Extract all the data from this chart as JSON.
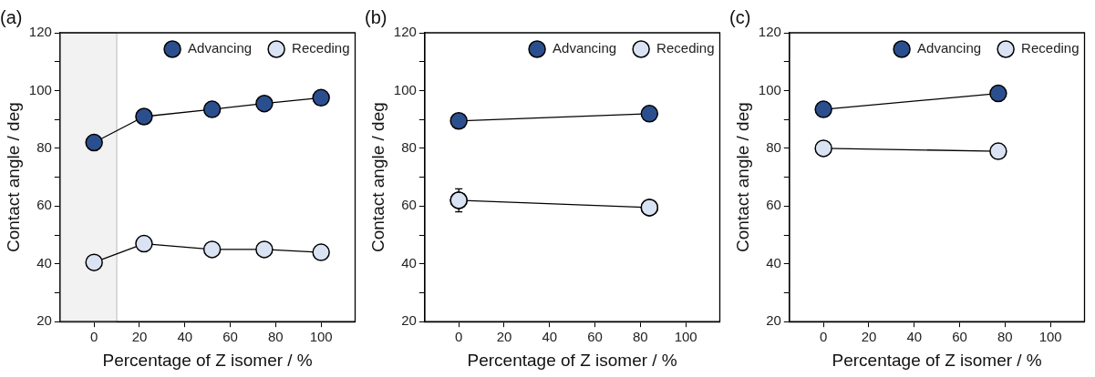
{
  "chart_data": [
    {
      "type": "line",
      "title": "(a)",
      "xlabel": "Percentage of Z isomer / %",
      "ylabel": "Contact angle / deg",
      "xlim": [
        -15,
        115
      ],
      "ylim": [
        20,
        120
      ],
      "xticks": [
        0,
        20,
        40,
        60,
        80,
        100
      ],
      "yticks": [
        20,
        {
          "value": 30,
          "label": null
        },
        40,
        {
          "value": 50,
          "label": null
        },
        60,
        {
          "value": 70,
          "label": null
        },
        80,
        {
          "value": 90,
          "label": null
        },
        100,
        {
          "value": 110,
          "label": null
        },
        120
      ],
      "grid": false,
      "legend": "top right",
      "marker": "circle",
      "line_style": "solid",
      "x": [
        0,
        22,
        52,
        75,
        100
      ],
      "bands": [
        {
          "axis": "x",
          "from": -15,
          "to": 10,
          "color": "#f2f2f2"
        }
      ],
      "series": [
        {
          "name": "Advancing",
          "color": "#2b4f8e",
          "values": [
            82,
            91,
            93.5,
            95.5,
            97.5
          ]
        },
        {
          "name": "Receding",
          "color": "#dae3f3",
          "values": [
            40.5,
            47,
            45,
            45,
            44
          ]
        }
      ]
    },
    {
      "type": "line",
      "title": "(b)",
      "xlabel": "Percentage of Z isomer / %",
      "ylabel": "Contact angle / deg",
      "xlim": [
        -15,
        115
      ],
      "ylim": [
        20,
        120
      ],
      "xticks": [
        0,
        20,
        40,
        60,
        80,
        100
      ],
      "yticks": [
        20,
        {
          "value": 30,
          "label": null
        },
        40,
        {
          "value": 50,
          "label": null
        },
        60,
        {
          "value": 70,
          "label": null
        },
        80,
        {
          "value": 90,
          "label": null
        },
        100,
        {
          "value": 110,
          "label": null
        },
        120
      ],
      "grid": false,
      "legend": "top right",
      "marker": "circle",
      "line_style": "solid",
      "x": [
        0,
        84
      ],
      "series": [
        {
          "name": "Advancing",
          "color": "#2b4f8e",
          "values": [
            89.5,
            92
          ]
        },
        {
          "name": "Receding",
          "color": "#dae3f3",
          "values": [
            62,
            59.5
          ],
          "errors": [
            4,
            null
          ]
        }
      ]
    },
    {
      "type": "line",
      "title": "(c)",
      "xlabel": "Percentage of Z isomer / %",
      "ylabel": "Contact angle / deg",
      "xlim": [
        -15,
        115
      ],
      "ylim": [
        20,
        120
      ],
      "xticks": [
        0,
        20,
        40,
        60,
        80,
        100
      ],
      "yticks": [
        20,
        {
          "value": 30,
          "label": null
        },
        40,
        {
          "value": 50,
          "label": null
        },
        60,
        {
          "value": 70,
          "label": null
        },
        80,
        {
          "value": 90,
          "label": null
        },
        100,
        {
          "value": 110,
          "label": null
        },
        120
      ],
      "grid": false,
      "legend": "top right",
      "marker": "circle",
      "line_style": "solid",
      "x": [
        0,
        77
      ],
      "series": [
        {
          "name": "Advancing",
          "color": "#2b4f8e",
          "values": [
            93.5,
            99
          ]
        },
        {
          "name": "Receding",
          "color": "#dae3f3",
          "values": [
            80,
            79
          ]
        }
      ]
    }
  ]
}
